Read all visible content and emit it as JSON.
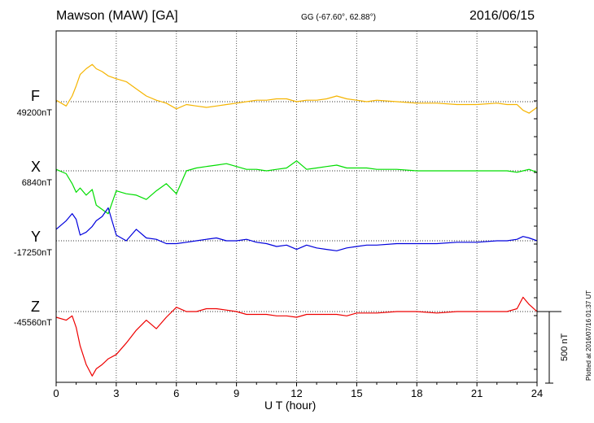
{
  "header": {
    "station": "Mawson (MAW)  [GA]",
    "coords": "GG (-67.60°,  62.88°)",
    "date": "2016/06/15"
  },
  "footer": {
    "plotted": "Plotted at 2016/07/16 01:37 UT",
    "scale_label": "500 nT"
  },
  "colors": {
    "F": "#f5b400",
    "X": "#00dd00",
    "Y": "#0000dd",
    "Z": "#ee0000"
  },
  "chart_data": {
    "type": "line",
    "title": "Mawson (MAW)  [GA]",
    "xlabel": "U T (hour)",
    "ylabel": "",
    "xlim": [
      0,
      24
    ],
    "xticks": [
      0,
      3,
      6,
      9,
      12,
      15,
      18,
      21,
      24
    ],
    "grid": true,
    "scale_bar_nT": 500,
    "series": [
      {
        "name": "F",
        "baseline_label": "49200nT",
        "baseline_nT": 49200,
        "x": [
          0.0,
          0.5,
          0.8,
          1.0,
          1.2,
          1.5,
          1.8,
          2.0,
          2.3,
          2.6,
          3.0,
          3.5,
          4.0,
          4.5,
          5.0,
          5.5,
          6.0,
          6.5,
          7.0,
          7.5,
          8.0,
          8.5,
          9.0,
          9.5,
          10.0,
          10.5,
          11.0,
          11.5,
          12.0,
          12.5,
          13.0,
          13.5,
          14.0,
          14.5,
          15.0,
          15.5,
          16.0,
          17.0,
          18.0,
          19.0,
          20.0,
          21.0,
          22.0,
          22.5,
          23.0,
          23.3,
          23.6,
          24.0
        ],
        "y": [
          10,
          -30,
          40,
          110,
          190,
          230,
          260,
          230,
          210,
          180,
          160,
          140,
          90,
          40,
          10,
          -10,
          -50,
          -20,
          -30,
          -40,
          -30,
          -20,
          -10,
          0,
          10,
          10,
          20,
          20,
          0,
          10,
          10,
          20,
          40,
          20,
          10,
          0,
          10,
          0,
          -10,
          -10,
          -20,
          -20,
          -10,
          -20,
          -20,
          -60,
          -80,
          -40
        ]
      },
      {
        "name": "X",
        "baseline_label": "6840nT",
        "baseline_nT": 6840,
        "x": [
          0.0,
          0.5,
          0.8,
          1.0,
          1.2,
          1.5,
          1.8,
          2.0,
          2.3,
          2.6,
          3.0,
          3.5,
          4.0,
          4.5,
          5.0,
          5.5,
          6.0,
          6.5,
          7.0,
          7.5,
          8.0,
          8.5,
          9.0,
          9.5,
          10.0,
          10.5,
          11.0,
          11.5,
          12.0,
          12.5,
          13.0,
          13.5,
          14.0,
          14.5,
          15.0,
          15.5,
          16.0,
          17.0,
          18.0,
          19.0,
          20.0,
          21.0,
          22.0,
          22.5,
          23.0,
          23.3,
          23.6,
          24.0
        ],
        "y": [
          10,
          -20,
          -90,
          -150,
          -120,
          -170,
          -130,
          -240,
          -270,
          -300,
          -140,
          -160,
          -170,
          -200,
          -140,
          -90,
          -160,
          0,
          20,
          30,
          40,
          50,
          30,
          10,
          10,
          0,
          10,
          20,
          70,
          10,
          20,
          30,
          40,
          20,
          20,
          20,
          10,
          10,
          0,
          0,
          0,
          0,
          0,
          0,
          -10,
          0,
          10,
          -10
        ]
      },
      {
        "name": "Y",
        "baseline_label": "-17250nT",
        "baseline_nT": -17250,
        "x": [
          0.0,
          0.5,
          0.8,
          1.0,
          1.2,
          1.5,
          1.8,
          2.0,
          2.3,
          2.6,
          3.0,
          3.5,
          4.0,
          4.5,
          5.0,
          5.5,
          6.0,
          6.5,
          7.0,
          7.5,
          8.0,
          8.5,
          9.0,
          9.5,
          10.0,
          10.5,
          11.0,
          11.5,
          12.0,
          12.5,
          13.0,
          13.5,
          14.0,
          14.5,
          15.0,
          15.5,
          16.0,
          17.0,
          18.0,
          19.0,
          20.0,
          21.0,
          22.0,
          22.5,
          23.0,
          23.3,
          23.6,
          24.0
        ],
        "y": [
          80,
          140,
          190,
          150,
          40,
          60,
          100,
          140,
          170,
          230,
          40,
          0,
          80,
          20,
          10,
          -20,
          -20,
          -10,
          0,
          10,
          20,
          0,
          0,
          10,
          -10,
          -20,
          -40,
          -30,
          -60,
          -30,
          -50,
          -60,
          -70,
          -50,
          -40,
          -30,
          -30,
          -20,
          -20,
          -20,
          -10,
          -10,
          0,
          0,
          10,
          30,
          20,
          0
        ]
      },
      {
        "name": "Z",
        "baseline_label": "-45560nT",
        "baseline_nT": -45560,
        "x": [
          0.0,
          0.5,
          0.8,
          1.0,
          1.2,
          1.5,
          1.8,
          2.0,
          2.3,
          2.6,
          3.0,
          3.5,
          4.0,
          4.5,
          5.0,
          5.5,
          6.0,
          6.5,
          7.0,
          7.5,
          8.0,
          8.5,
          9.0,
          9.5,
          10.0,
          10.5,
          11.0,
          11.5,
          12.0,
          12.5,
          13.0,
          13.5,
          14.0,
          14.5,
          15.0,
          15.5,
          16.0,
          17.0,
          18.0,
          19.0,
          20.0,
          21.0,
          22.0,
          22.5,
          23.0,
          23.3,
          23.6,
          24.0
        ],
        "y": [
          -40,
          -60,
          -30,
          -110,
          -240,
          -370,
          -450,
          -400,
          -370,
          -330,
          -300,
          -220,
          -130,
          -60,
          -120,
          -40,
          30,
          0,
          0,
          20,
          20,
          10,
          0,
          -20,
          -20,
          -20,
          -30,
          -30,
          -40,
          -20,
          -20,
          -20,
          -20,
          -30,
          -10,
          -10,
          -10,
          0,
          0,
          -10,
          0,
          0,
          0,
          0,
          20,
          100,
          50,
          0
        ]
      }
    ]
  }
}
